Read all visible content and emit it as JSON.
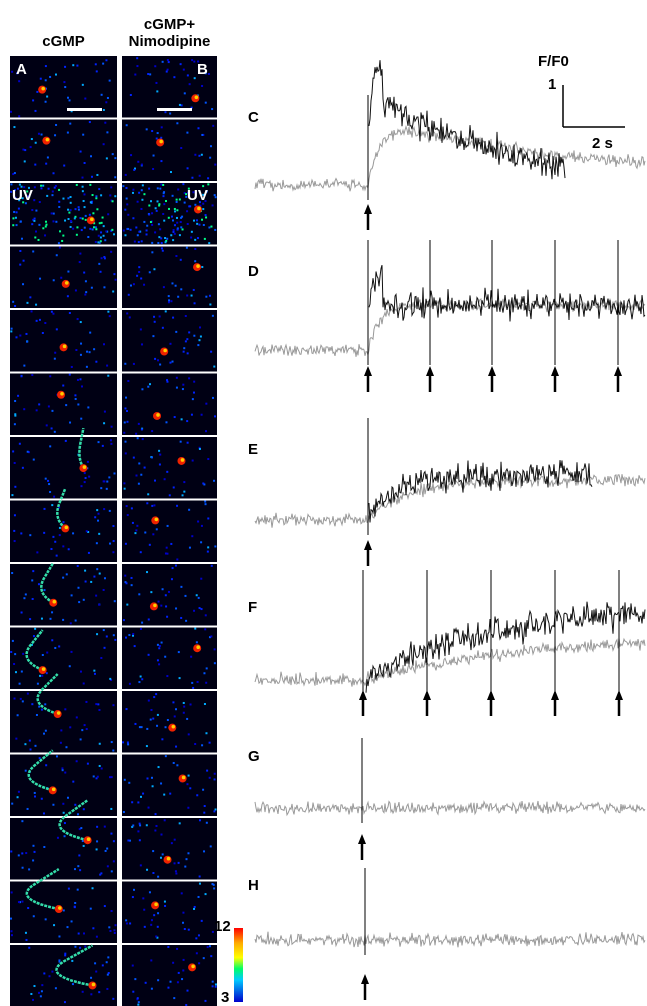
{
  "columns": [
    {
      "title": [
        "cGMP"
      ],
      "panel_label": "A",
      "stimulus_label": "UV"
    },
    {
      "title": [
        "cGMP+",
        "Nimodipine"
      ],
      "panel_label": "B",
      "stimulus_label": "UV"
    }
  ],
  "traces": [
    {
      "label": "C"
    },
    {
      "label": "D"
    },
    {
      "label": "E"
    },
    {
      "label": "F"
    },
    {
      "label": "G"
    },
    {
      "label": "H"
    }
  ],
  "scale_bar": {
    "y_title": "F/F0",
    "y_size": 1,
    "x_size": "2 s"
  },
  "colorbar": {
    "max": 12,
    "min": 3
  }
}
